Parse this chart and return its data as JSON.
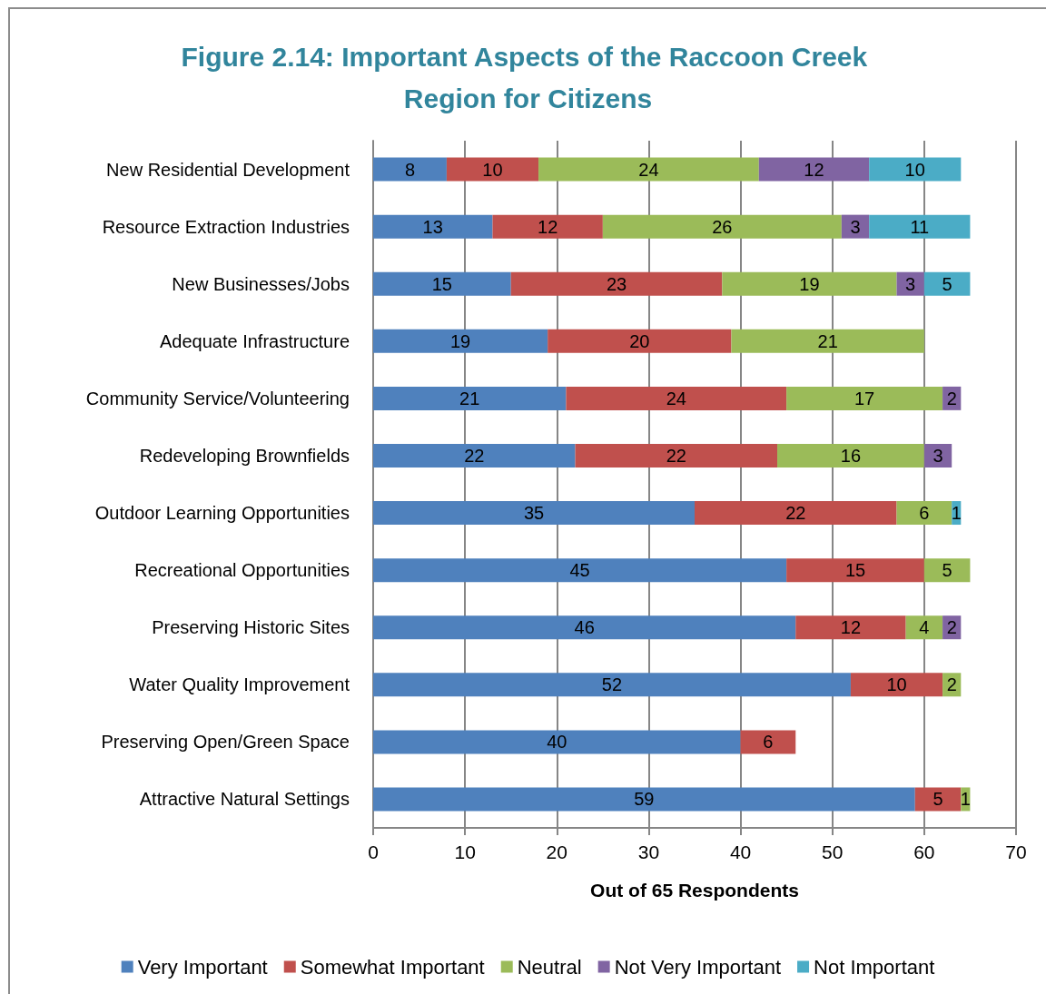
{
  "chart_data": {
    "type": "bar",
    "orientation": "horizontal",
    "stacked": true,
    "title": "Figure 2.14: Important Aspects of the Raccoon Creek Region for Citizens",
    "xlabel": "Out of 65 Respondents",
    "categories": [
      "New Residential Development",
      "Resource Extraction Industries",
      "New Businesses/Jobs",
      "Adequate Infrastructure",
      "Community Service/Volunteering",
      "Redeveloping Brownfields",
      "Outdoor Learning Opportunities",
      "Recreational Opportunities",
      "Preserving Historic Sites",
      "Water Quality Improvement",
      "Preserving Open/Green Space",
      "Attractive Natural Settings"
    ],
    "series": [
      {
        "name": "Very Important",
        "color": "#4f81bd",
        "values": [
          8,
          13,
          15,
          19,
          21,
          22,
          35,
          45,
          46,
          52,
          40,
          59
        ]
      },
      {
        "name": "Somewhat Important",
        "color": "#c0504d",
        "values": [
          10,
          12,
          23,
          20,
          24,
          22,
          22,
          15,
          12,
          10,
          6,
          5
        ]
      },
      {
        "name": "Neutral",
        "color": "#9bbb59",
        "values": [
          24,
          26,
          19,
          21,
          17,
          16,
          6,
          5,
          4,
          2,
          null,
          1
        ]
      },
      {
        "name": "Not Very Important",
        "color": "#8064a2",
        "values": [
          12,
          3,
          3,
          null,
          2,
          3,
          null,
          null,
          2,
          null,
          null,
          null
        ]
      },
      {
        "name": "Not Important",
        "color": "#4bacc6",
        "values": [
          10,
          11,
          5,
          null,
          null,
          null,
          1,
          null,
          null,
          null,
          null,
          null
        ]
      }
    ],
    "xlim": [
      0,
      70
    ],
    "xticks": [
      0,
      10,
      20,
      30,
      40,
      50,
      60,
      70
    ],
    "grid": "x",
    "legend": "bottom",
    "data_labels": true
  }
}
